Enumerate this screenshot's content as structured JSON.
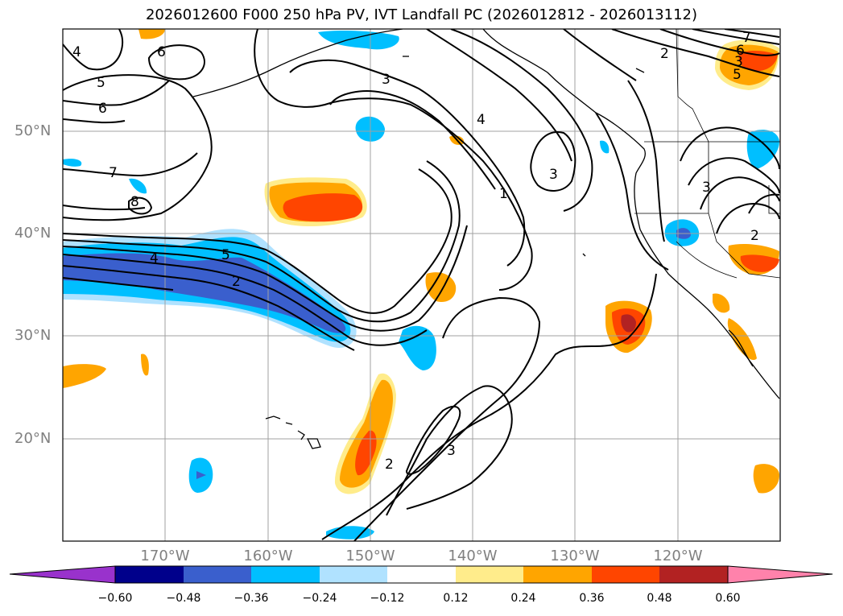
{
  "title": "2026012600 F000 250 hPa PV, IVT Landfall PC (2026012812 - 2026013112)",
  "map": {
    "projection": "PlateCarree",
    "lon_range_deg": [
      -180,
      -110
    ],
    "lat_range_deg": [
      10,
      60
    ],
    "gridlines": true,
    "coastlines": true,
    "borders": true
  },
  "lat_labels": [
    "50°N",
    "40°N",
    "30°N",
    "20°N"
  ],
  "lon_labels": [
    "170°W",
    "160°W",
    "150°W",
    "140°W",
    "130°W",
    "120°W"
  ],
  "contour_labels": [
    "4",
    "6",
    "5",
    "6",
    "7",
    "8",
    "4",
    "5",
    "2",
    "3",
    "4",
    "3",
    "1",
    "2",
    "3",
    "7",
    "6",
    "5",
    "3",
    "2",
    "2",
    "3"
  ],
  "colorbar": {
    "extend": "both",
    "ticks": [
      "−0.60",
      "−0.48",
      "−0.36",
      "−0.24",
      "−0.12",
      "0.12",
      "0.24",
      "0.36",
      "0.48",
      "0.60"
    ],
    "colors": [
      "#9932cc",
      "#00008b",
      "#3a5fcd",
      "#00bfff",
      "#b0e2ff",
      "#ffffff",
      "#ffec8b",
      "#ffa500",
      "#ff4500",
      "#b22222",
      "#ff82ab"
    ]
  }
}
